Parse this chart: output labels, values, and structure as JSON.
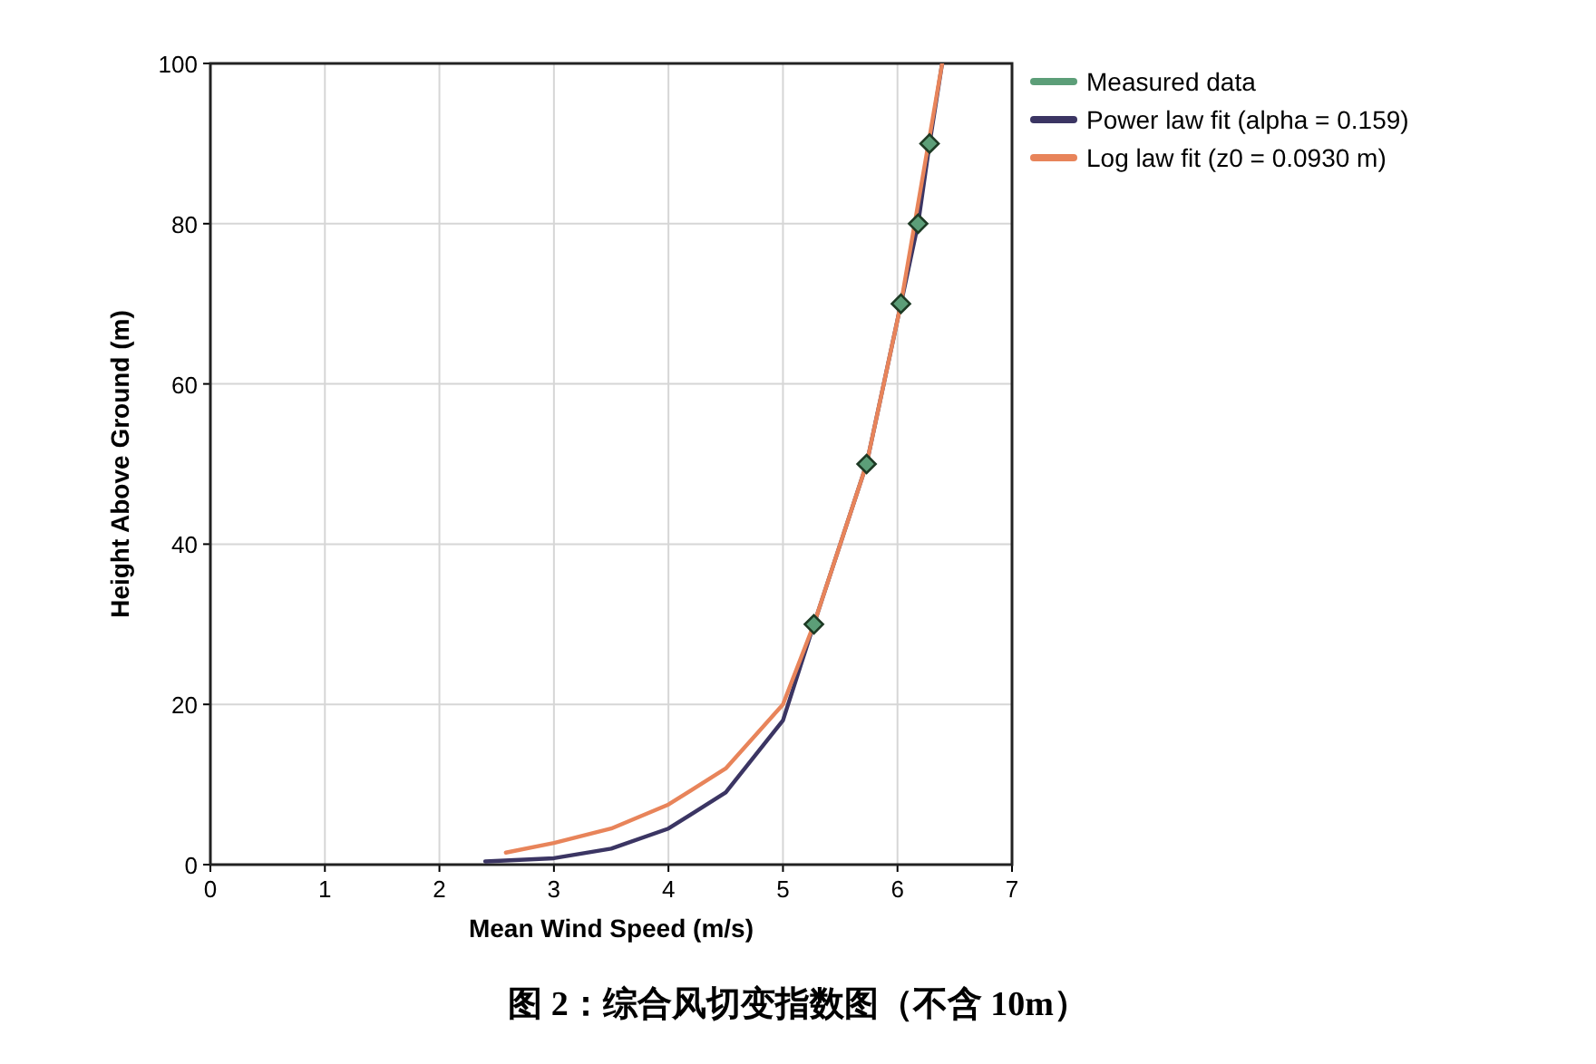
{
  "chart_data": {
    "type": "line",
    "xlabel": "Mean Wind Speed (m/s)",
    "ylabel": "Height Above Ground (m)",
    "xlim": [
      0,
      7
    ],
    "ylim": [
      0,
      100
    ],
    "xticks": [
      0,
      1,
      2,
      3,
      4,
      5,
      6,
      7
    ],
    "yticks": [
      0,
      20,
      40,
      60,
      80,
      100
    ],
    "grid": true,
    "legend": "top right",
    "annotations": [
      "图 2：综合风切变指数图（不含 10m）"
    ],
    "series": [
      {
        "name": "Measured data",
        "type": "scatter",
        "marker": "diamond",
        "color": "#5c9e78",
        "x": [
          5.27,
          5.73,
          6.03,
          6.18,
          6.28
        ],
        "values": [
          30,
          50,
          70,
          80,
          90
        ]
      },
      {
        "name": "Power law fit (alpha = 0.159)",
        "type": "line",
        "color": "#3b3563",
        "x": [
          2.4,
          3.0,
          3.5,
          4.0,
          4.5,
          5.0,
          5.27,
          5.73,
          6.03,
          6.18,
          6.28,
          6.39
        ],
        "values": [
          0.4,
          0.8,
          2.0,
          4.5,
          9,
          18,
          30,
          50,
          70,
          80,
          90,
          100
        ]
      },
      {
        "name": "Log law fit (z0 = 0.0930 m)",
        "type": "line",
        "color": "#e8845a",
        "x": [
          2.58,
          3.0,
          3.5,
          4.0,
          4.5,
          5.0,
          5.27,
          5.73,
          6.03,
          6.39
        ],
        "values": [
          1.5,
          2.7,
          4.5,
          7.5,
          12,
          20,
          30,
          50,
          70,
          100
        ]
      }
    ]
  }
}
